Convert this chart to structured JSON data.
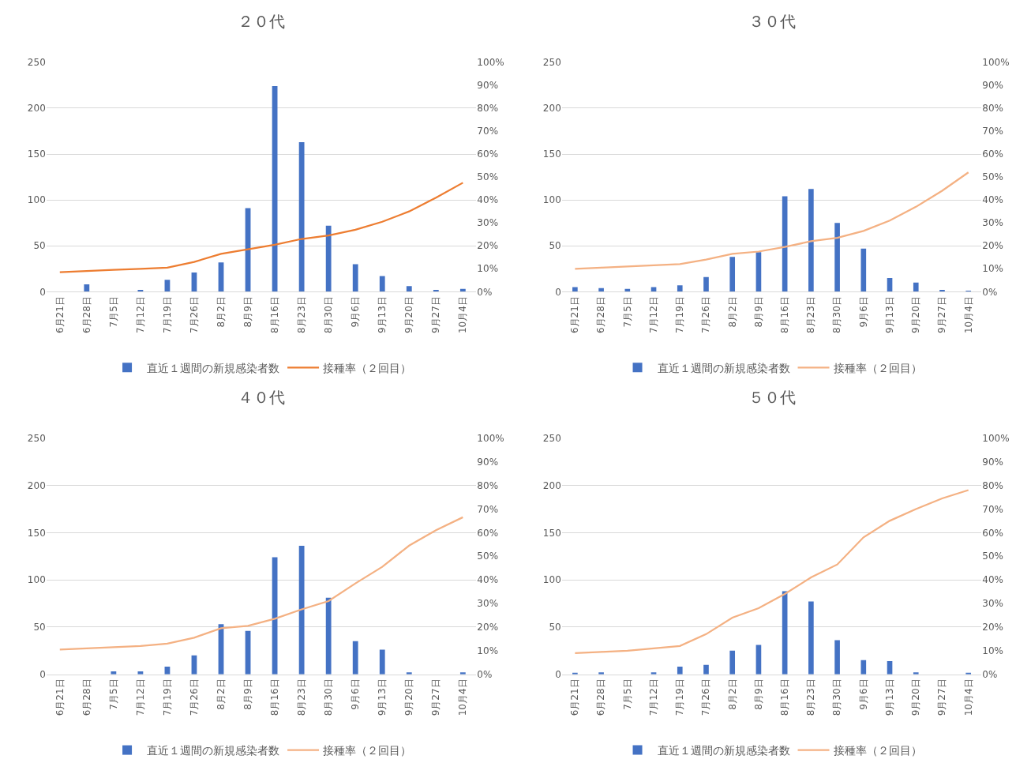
{
  "chart_data": [
    {
      "type": "bar",
      "title": "２０代",
      "categories": [
        "6月21日",
        "6月28日",
        "7月5日",
        "7月12日",
        "7月19日",
        "7月26日",
        "8月2日",
        "8月9日",
        "8月16日",
        "8月23日",
        "8月30日",
        "9月6日",
        "9月13日",
        "9月20日",
        "9月27日",
        "10月4日"
      ],
      "series": [
        {
          "name": "直近１週間の新規感染者数",
          "color": "#4472c4",
          "values": [
            0,
            8,
            0,
            2,
            13,
            21,
            32,
            91,
            224,
            163,
            72,
            30,
            17,
            6,
            2,
            3
          ]
        },
        {
          "type": "line",
          "axis": "y2",
          "name": "接種率（２回目）",
          "color": "#ed7d31",
          "values": [
            8.5,
            9,
            9.5,
            10,
            10.5,
            13,
            16.5,
            18.5,
            20.5,
            23,
            24.5,
            27,
            30.5,
            35,
            41,
            47.5
          ]
        }
      ],
      "ylim": [
        0,
        250
      ],
      "yticks": [
        0,
        50,
        100,
        150,
        200,
        250
      ],
      "y2lim": [
        0,
        100
      ],
      "y2ticks": [
        {
          "value": 0,
          "label": "0%"
        },
        {
          "value": 10,
          "label": "10%"
        },
        {
          "value": 20,
          "label": "20%"
        },
        {
          "value": 30,
          "label": "30%"
        },
        {
          "value": 40,
          "label": "40%"
        },
        {
          "value": 50,
          "label": "50%"
        },
        {
          "value": 60,
          "label": "60%"
        },
        {
          "value": 70,
          "label": "70%"
        },
        {
          "value": 80,
          "label": "80%"
        },
        {
          "value": 90,
          "label": "90%"
        },
        {
          "value": 100,
          "label": "100%"
        }
      ],
      "grid": "y",
      "legend": "bottom",
      "marker": "none"
    },
    {
      "type": "bar",
      "title": "３０代",
      "categories": [
        "6月21日",
        "6月28日",
        "7月5日",
        "7月12日",
        "7月19日",
        "7月26日",
        "8月2日",
        "8月9日",
        "8月16日",
        "8月23日",
        "8月30日",
        "9月6日",
        "9月13日",
        "9月20日",
        "9月27日",
        "10月4日"
      ],
      "series": [
        {
          "name": "直近１週間の新規感染者数",
          "color": "#4472c4",
          "values": [
            5,
            4,
            3,
            5,
            7,
            16,
            38,
            43,
            104,
            112,
            75,
            47,
            15,
            10,
            2,
            1
          ]
        },
        {
          "type": "line",
          "axis": "y2",
          "name": "接種率（２回目）",
          "color": "#f4b183",
          "values": [
            10,
            10.5,
            11,
            11.5,
            12,
            14,
            16.5,
            17.5,
            19.5,
            22,
            23.5,
            26.5,
            31,
            37,
            44,
            52
          ]
        }
      ],
      "ylim": [
        0,
        250
      ],
      "yticks": [
        0,
        50,
        100,
        150,
        200,
        250
      ],
      "y2lim": [
        0,
        100
      ],
      "y2ticks": [
        {
          "value": 0,
          "label": "0%"
        },
        {
          "value": 10,
          "label": "10%"
        },
        {
          "value": 20,
          "label": "20%"
        },
        {
          "value": 30,
          "label": "30%"
        },
        {
          "value": 40,
          "label": "40%"
        },
        {
          "value": 50,
          "label": "50%"
        },
        {
          "value": 60,
          "label": "60%"
        },
        {
          "value": 70,
          "label": "70%"
        },
        {
          "value": 80,
          "label": "80%"
        },
        {
          "value": 90,
          "label": "90%"
        },
        {
          "value": 100,
          "label": "100%"
        }
      ],
      "grid": "y",
      "legend": "bottom",
      "marker": "none"
    },
    {
      "type": "bar",
      "title": "４０代",
      "categories": [
        "6月21日",
        "6月28日",
        "7月5日",
        "7月12日",
        "7月19日",
        "7月26日",
        "8月2日",
        "8月9日",
        "8月16日",
        "8月23日",
        "8月30日",
        "9月6日",
        "9月13日",
        "9月20日",
        "9月27日",
        "10月4日"
      ],
      "series": [
        {
          "name": "直近１週間の新規感染者数",
          "color": "#4472c4",
          "values": [
            0,
            0,
            3,
            3,
            8,
            20,
            53,
            46,
            124,
            136,
            81,
            35,
            26,
            2,
            0,
            2
          ]
        },
        {
          "type": "line",
          "axis": "y2",
          "name": "接種率（２回目）",
          "color": "#f4b183",
          "values": [
            10.5,
            11,
            11.5,
            12,
            13,
            15.5,
            19.5,
            20.5,
            23.5,
            27.5,
            31,
            38.5,
            45.5,
            54.5,
            61,
            66.5
          ]
        }
      ],
      "ylim": [
        0,
        250
      ],
      "yticks": [
        0,
        50,
        100,
        150,
        200,
        250
      ],
      "y2lim": [
        0,
        100
      ],
      "y2ticks": [
        {
          "value": 0,
          "label": "0%"
        },
        {
          "value": 10,
          "label": "10%"
        },
        {
          "value": 20,
          "label": "20%"
        },
        {
          "value": 30,
          "label": "30%"
        },
        {
          "value": 40,
          "label": "40%"
        },
        {
          "value": 50,
          "label": "50%"
        },
        {
          "value": 60,
          "label": "60%"
        },
        {
          "value": 70,
          "label": "70%"
        },
        {
          "value": 80,
          "label": "80%"
        },
        {
          "value": 90,
          "label": "90%"
        },
        {
          "value": 100,
          "label": "100%"
        }
      ],
      "grid": "y",
      "legend": "bottom",
      "marker": "none"
    },
    {
      "type": "bar",
      "title": "５０代",
      "categories": [
        "6月21日",
        "6月28日",
        "7月5日",
        "7月12日",
        "7月19日",
        "7月26日",
        "8月2日",
        "8月9日",
        "8月16日",
        "8月23日",
        "8月30日",
        "9月6日",
        "9月13日",
        "9月20日",
        "9月27日",
        "10月4日"
      ],
      "series": [
        {
          "name": "直近１週間の新規感染者数",
          "color": "#4472c4",
          "values": [
            1,
            2,
            0,
            2,
            8,
            10,
            25,
            31,
            88,
            77,
            36,
            15,
            14,
            2,
            0,
            1
          ]
        },
        {
          "type": "line",
          "axis": "y2",
          "name": "接種率（２回目）",
          "color": "#f4b183",
          "values": [
            9,
            9.5,
            10,
            11,
            12,
            17,
            24,
            28,
            34,
            41,
            46.5,
            58,
            65,
            70,
            74.5,
            78
          ]
        }
      ],
      "ylim": [
        0,
        250
      ],
      "yticks": [
        0,
        50,
        100,
        150,
        200,
        250
      ],
      "y2lim": [
        0,
        100
      ],
      "y2ticks": [
        {
          "value": 0,
          "label": "0%"
        },
        {
          "value": 10,
          "label": "10%"
        },
        {
          "value": 20,
          "label": "20%"
        },
        {
          "value": 30,
          "label": "30%"
        },
        {
          "value": 40,
          "label": "40%"
        },
        {
          "value": 50,
          "label": "50%"
        },
        {
          "value": 60,
          "label": "60%"
        },
        {
          "value": 70,
          "label": "70%"
        },
        {
          "value": 80,
          "label": "80%"
        },
        {
          "value": 90,
          "label": "90%"
        },
        {
          "value": 100,
          "label": "100%"
        }
      ],
      "grid": "y",
      "legend": "bottom",
      "marker": "none"
    }
  ]
}
